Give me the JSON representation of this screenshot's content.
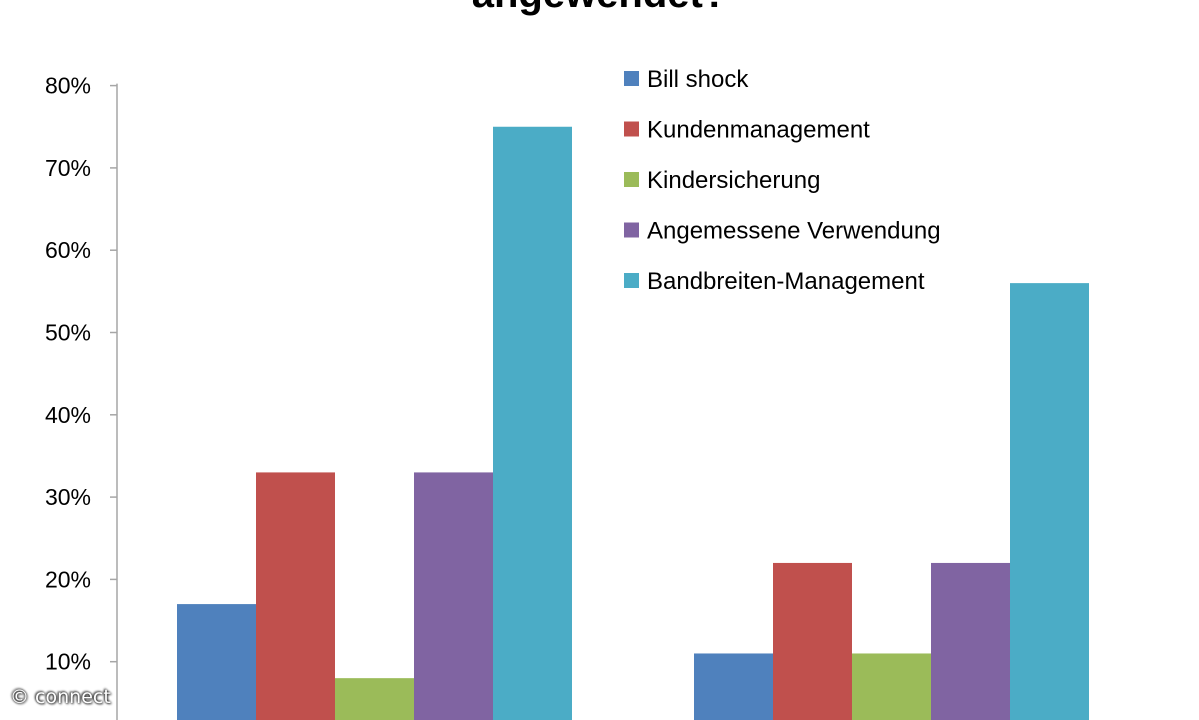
{
  "chart_data": {
    "type": "bar",
    "title": "angewendet?",
    "xlabel": "",
    "ylabel": "",
    "ylim": [
      0,
      80
    ],
    "yticks": [
      "10%",
      "20%",
      "30%",
      "40%",
      "50%",
      "60%",
      "70%",
      "80%"
    ],
    "ytick_values": [
      10,
      20,
      30,
      40,
      50,
      60,
      70,
      80
    ],
    "grid": false,
    "legend_position": "top-right",
    "categories": [
      "",
      ""
    ],
    "series": [
      {
        "name": "Bill shock",
        "color": "#4f81bd",
        "values": [
          17,
          11
        ]
      },
      {
        "name": "Kundenmanagement",
        "color": "#c0504d",
        "values": [
          33,
          22
        ]
      },
      {
        "name": "Kindersicherung",
        "color": "#9bbb59",
        "values": [
          8,
          11
        ]
      },
      {
        "name": "Angemessene Verwendung",
        "color": "#8064a2",
        "values": [
          33,
          22
        ]
      },
      {
        "name": "Bandbreiten-Management",
        "color": "#4bacc6",
        "values": [
          75,
          56
        ]
      }
    ]
  },
  "watermark": "© connect"
}
